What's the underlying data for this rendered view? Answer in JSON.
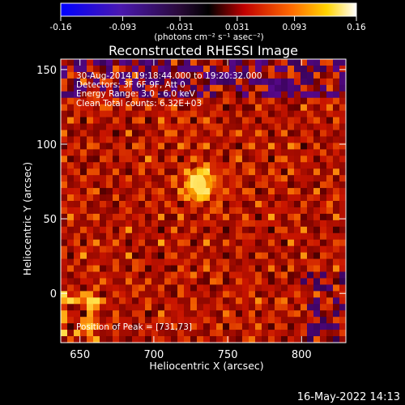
{
  "chart_data": {
    "type": "heatmap",
    "title": "Reconstructed RHESSI Image",
    "xlabel": "Heliocentric X (arcsec)",
    "ylabel": "Heliocentric Y (arcsec)",
    "xlim": [
      637,
      830
    ],
    "ylim": [
      -33,
      157
    ],
    "x_ticks": [
      "650",
      "700",
      "750",
      "800"
    ],
    "x_tick_values": [
      650,
      700,
      750,
      800
    ],
    "y_ticks": [
      "0",
      "50",
      "100",
      "150"
    ],
    "y_tick_values": [
      0,
      50,
      100,
      150
    ],
    "colorbar": {
      "ticks": [
        "-0.16",
        "-0.093",
        "-0.031",
        "0.031",
        "0.093",
        "0.16"
      ],
      "tick_values": [
        -0.16,
        -0.093,
        -0.031,
        0.031,
        0.093,
        0.16
      ],
      "range": [
        -0.16,
        0.16
      ],
      "units": "(photons cm⁻² s⁻¹ asec⁻²)",
      "colormap": "blue-purple-black-red-orange-yellow-white"
    },
    "annotations": [
      "30-Aug-2014 19:18:44.000 to 19:20:32.000",
      "Detectors: 3F 6F 9F, Att 0",
      "Energy Range: 3.0 - 6.0 keV",
      "Clean     Total counts: 6.32E+03"
    ],
    "peak_label": "Position of Peak = [731,73]",
    "peak": {
      "x": 731,
      "y": 73
    }
  },
  "footer": {
    "timestamp": "16-May-2022 14:13"
  }
}
